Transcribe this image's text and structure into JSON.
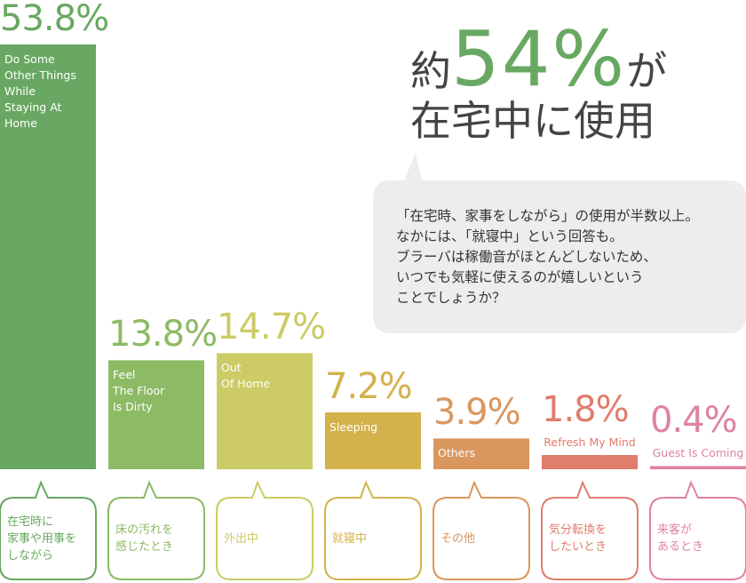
{
  "chart_data": {
    "type": "bar",
    "headline_prefix": "約",
    "headline_highlight": "54%",
    "headline_suffix": "が",
    "headline_line2": "在宅中に使用",
    "callout": "「在宅時、家事をしながら」の使用が半数以上。\nなかには、「就寝中」という回答も。\nブラーバは稼働音がほとんどしないため、\nいつでも気軽に使えるのが嬉しいという\nことでしょうか？",
    "categories": [
      "Do Some\nOther Things\nWhile\nStaying At\nHome",
      "Feel\nThe Floor\nIs Dirty",
      "Out\nOf Home",
      "Sleeping",
      "Others",
      "Refresh My Mind",
      "Guest Is Coming"
    ],
    "bubble_labels": [
      "在宅時に\n家事や用事を\nしながら",
      "床の汚れを\n感じたとき",
      "外出中",
      "就寝中",
      "その他",
      "気分転換を\nしたいとき",
      "来客が\nあるとき"
    ],
    "values": [
      53.8,
      13.8,
      14.7,
      7.2,
      3.9,
      1.8,
      0.4
    ],
    "value_labels": [
      "53.8%",
      "13.8%",
      "14.7%",
      "7.2%",
      "3.9%",
      "1.8%",
      "0.4%"
    ],
    "colors": [
      "#69a862",
      "#8dba65",
      "#cccb65",
      "#d3b24b",
      "#d9975e",
      "#e07d6c",
      "#de82a4"
    ]
  }
}
